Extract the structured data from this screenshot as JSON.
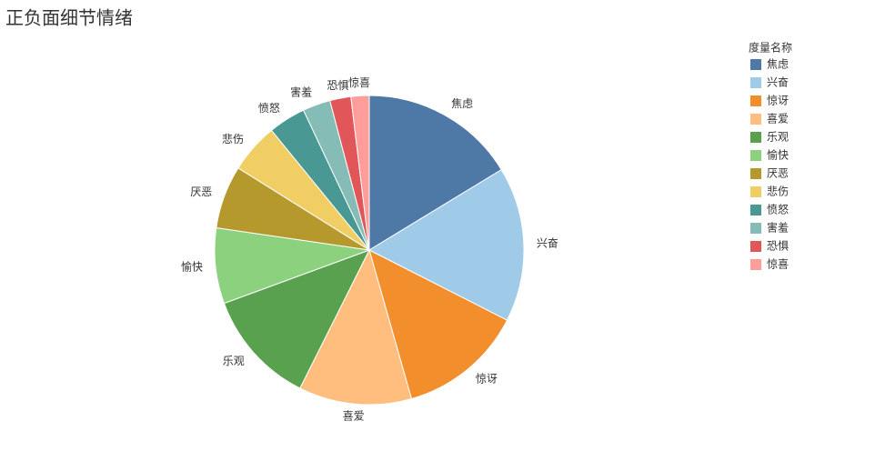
{
  "chart_data": {
    "type": "pie",
    "title": "正负面细节情绪",
    "legend_title": "度量名称",
    "categories": [
      "焦虑",
      "兴奋",
      "惊讶",
      "喜爱",
      "乐观",
      "愉快",
      "厌恶",
      "悲伤",
      "愤怒",
      "害羞",
      "恐惧",
      "惊喜"
    ],
    "values": [
      16.3,
      16.2,
      13.1,
      11.8,
      12,
      7.9,
      6.6,
      5.2,
      3.9,
      2.9,
      2.2,
      1.9
    ],
    "colors": [
      "#4e79a7",
      "#a0cbe8",
      "#f28e2b",
      "#ffbe7d",
      "#59a14f",
      "#8cd17d",
      "#b6992d",
      "#f1ce63",
      "#499894",
      "#86bcb6",
      "#e15759",
      "#ff9d9a"
    ],
    "legend_position": "right"
  }
}
